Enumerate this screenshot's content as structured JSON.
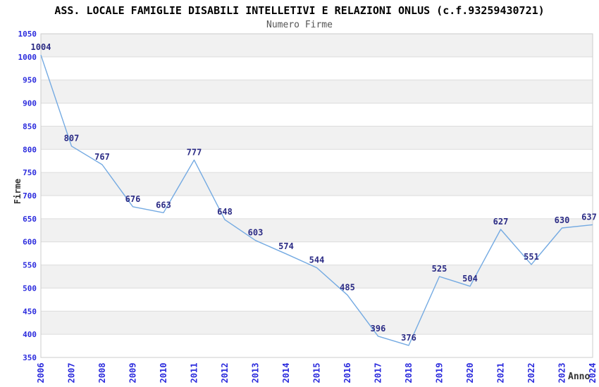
{
  "chart_data": {
    "type": "line",
    "title": "ASS. LOCALE FAMIGLIE DISABILI INTELLETIVI E RELAZIONI ONLUS (c.f.93259430721)",
    "subtitle": "Numero Firme",
    "xlabel": "Anno",
    "ylabel": "Firme",
    "categories": [
      "2006",
      "2007",
      "2008",
      "2009",
      "2010",
      "2011",
      "2012",
      "2013",
      "2014",
      "2015",
      "2016",
      "2017",
      "2018",
      "2019",
      "2020",
      "2021",
      "2022",
      "2023",
      "2024"
    ],
    "values": [
      1004,
      807,
      767,
      676,
      663,
      777,
      648,
      603,
      574,
      544,
      485,
      396,
      376,
      525,
      504,
      627,
      551,
      630,
      637
    ],
    "ylim": [
      350,
      1050
    ],
    "ytick_step": 50,
    "grid": true,
    "legend_position": "none",
    "colors": {
      "line": "#74aae2",
      "data_label": "#2b2b85",
      "tick_label": "#2b2bdd",
      "band": "#f1f1f1",
      "gridline": "#dcdcdc",
      "border": "#cccccc",
      "title": "#000000",
      "subtitle": "#555555",
      "axis_title": "#333333",
      "background": "#ffffff"
    }
  }
}
